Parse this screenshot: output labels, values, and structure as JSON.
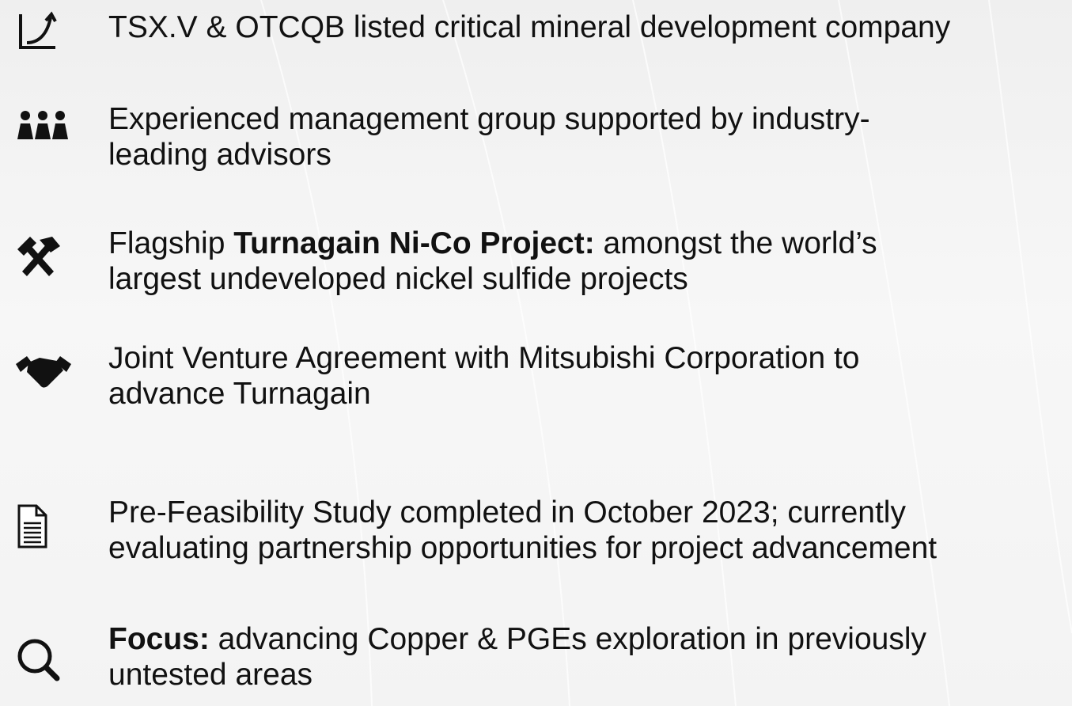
{
  "items": [
    {
      "lines": [
        [
          "TSX.V & OTCQB listed critical mineral development company"
        ]
      ]
    },
    {
      "lines": [
        [
          "Experienced management group supported by industry-"
        ],
        [
          "leading advisors"
        ]
      ]
    },
    {
      "lines": [
        [
          "Flagship ",
          {
            "bold": "Turnagain Ni-Co Project:"
          },
          " amongst the world’s"
        ],
        [
          "largest undeveloped nickel sulfide projects"
        ]
      ]
    },
    {
      "lines": [
        [
          "Joint Venture Agreement with Mitsubishi Corporation to"
        ],
        [
          "advance Turnagain"
        ]
      ]
    },
    {
      "lines": [
        [
          "Pre-Feasibility Study completed in October 2023; currently"
        ],
        [
          "evaluating partnership opportunities for project advancement"
        ]
      ]
    },
    {
      "lines": [
        [
          {
            "bold": "Focus:"
          },
          " advancing Copper & PGEs exploration in previously"
        ],
        [
          "untested areas"
        ]
      ]
    }
  ]
}
